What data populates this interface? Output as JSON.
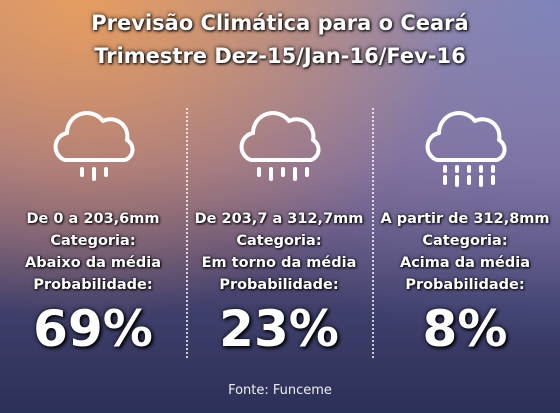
{
  "title": {
    "line1": "Previsão Climática para o Ceará",
    "line2": "Trimestre Dez-15/Jan-16/Fev-16"
  },
  "columns": [
    {
      "icon": "cloud-light-rain-icon",
      "range": "De 0 a 203,6mm",
      "category_label": "Categoria:",
      "category": "Abaixo da média",
      "probability_label": "Probabilidade:",
      "probability": "69%"
    },
    {
      "icon": "cloud-moderate-rain-icon",
      "range": "De 203,7 a 312,7mm",
      "category_label": "Categoria:",
      "category": "Em torno da média",
      "probability_label": "Probabilidade:",
      "probability": "23%"
    },
    {
      "icon": "cloud-heavy-rain-icon",
      "range": "A partir de 312,8mm",
      "category_label": "Categoria:",
      "category": "Acima da média",
      "probability_label": "Probabilidade:",
      "probability": "8%"
    }
  ],
  "source": "Fonte: Funceme"
}
